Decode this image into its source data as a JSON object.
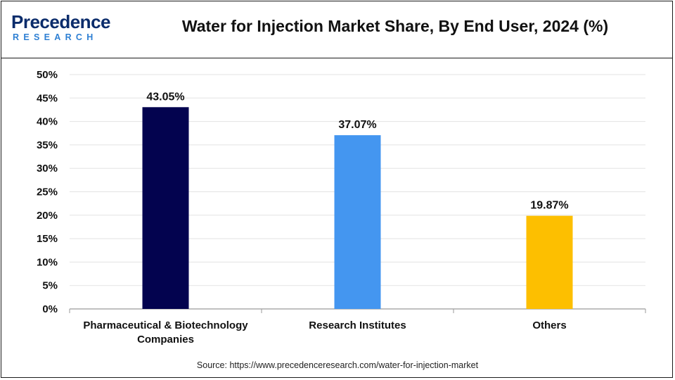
{
  "header": {
    "logo_main": "Precedence",
    "logo_sub": "RESEARCH"
  },
  "chart_data": {
    "type": "bar",
    "title": "Water for Injection Market Share, By End User, 2024 (%)",
    "categories": [
      [
        "Pharmaceutical & Biotechnology",
        "Companies"
      ],
      [
        "Research Institutes"
      ],
      [
        "Others"
      ]
    ],
    "values": [
      43.05,
      37.07,
      19.87
    ],
    "value_labels": [
      "43.05%",
      "37.07%",
      "19.87%"
    ],
    "colors": [
      "#03034f",
      "#4496f0",
      "#fdbf00"
    ],
    "ylim": [
      0,
      50
    ],
    "yticks": [
      "0%",
      "5%",
      "10%",
      "15%",
      "20%",
      "25%",
      "30%",
      "35%",
      "40%",
      "45%",
      "50%"
    ],
    "grid": true,
    "legend": "none"
  },
  "footer": {
    "source": "Source: https://www.precedenceresearch.com/water-for-injection-market"
  }
}
